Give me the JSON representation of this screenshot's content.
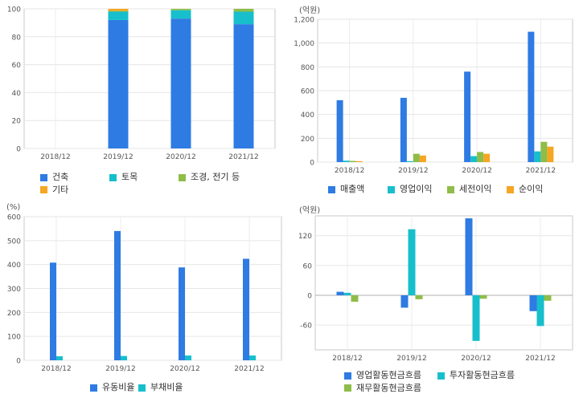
{
  "colors": {
    "blue": "#2e7be3",
    "teal": "#17bfcc",
    "green": "#8ebd48",
    "orange": "#f5a623"
  },
  "chart_data": [
    {
      "type": "bar",
      "stacked": true,
      "categories": [
        "2018/12",
        "2019/12",
        "2020/12",
        "2021/12"
      ],
      "ylim": [
        0,
        100
      ],
      "yticks": [
        0,
        20,
        40,
        60,
        80,
        100
      ],
      "unit": "",
      "grid": true,
      "legend_position": "bottom",
      "series": [
        {
          "name": "건축",
          "values": [
            0,
            92,
            93,
            89
          ],
          "color": "blue"
        },
        {
          "name": "토목",
          "values": [
            0,
            6,
            6,
            9
          ],
          "color": "teal"
        },
        {
          "name": "조경, 전기 등",
          "values": [
            0,
            0.5,
            1,
            2
          ],
          "color": "green"
        },
        {
          "name": "기타",
          "values": [
            0,
            1.5,
            0,
            0
          ],
          "color": "orange"
        }
      ]
    },
    {
      "type": "bar",
      "categories": [
        "2018/12",
        "2019/12",
        "2020/12",
        "2021/12"
      ],
      "ylim": [
        0,
        1200
      ],
      "yticks": [
        0,
        200,
        400,
        600,
        800,
        1000,
        1200
      ],
      "ytick_labels": [
        "0",
        "200",
        "400",
        "600",
        "800",
        "1,000",
        "1,200"
      ],
      "unit": "(억원)",
      "grid": true,
      "legend_position": "bottom",
      "series": [
        {
          "name": "매출액",
          "values": [
            520,
            540,
            760,
            1095
          ],
          "color": "blue"
        },
        {
          "name": "영업이익",
          "values": [
            12,
            8,
            50,
            90
          ],
          "color": "teal"
        },
        {
          "name": "세전이익",
          "values": [
            10,
            70,
            85,
            170
          ],
          "color": "green"
        },
        {
          "name": "순이익",
          "values": [
            8,
            55,
            70,
            130
          ],
          "color": "orange"
        }
      ]
    },
    {
      "type": "bar",
      "categories": [
        "2018/12",
        "2019/12",
        "2020/12",
        "2021/12"
      ],
      "ylim": [
        0,
        600
      ],
      "yticks": [
        0,
        100,
        200,
        300,
        400,
        500,
        600
      ],
      "unit": "(%)",
      "grid": true,
      "legend_position": "bottom",
      "series": [
        {
          "name": "유동비율",
          "values": [
            408,
            540,
            388,
            424
          ],
          "color": "blue"
        },
        {
          "name": "부채비율",
          "values": [
            17,
            18,
            20,
            20
          ],
          "color": "teal"
        }
      ]
    },
    {
      "type": "bar",
      "categories": [
        "2018/12",
        "2019/12",
        "2020/12",
        "2021/12"
      ],
      "ylim": [
        -110,
        160
      ],
      "yticks": [
        -60,
        0,
        60,
        120
      ],
      "unit": "(억원)",
      "grid": true,
      "legend_position": "bottom",
      "series": [
        {
          "name": "영업활동현금흐름",
          "values": [
            7,
            -25,
            155,
            -32
          ],
          "color": "blue"
        },
        {
          "name": "투자활동현금흐름",
          "values": [
            5,
            133,
            -92,
            -62
          ],
          "color": "teal"
        },
        {
          "name": "재무활동현금흐름",
          "values": [
            -13,
            -8,
            -7,
            -11
          ],
          "color": "green"
        }
      ]
    }
  ]
}
